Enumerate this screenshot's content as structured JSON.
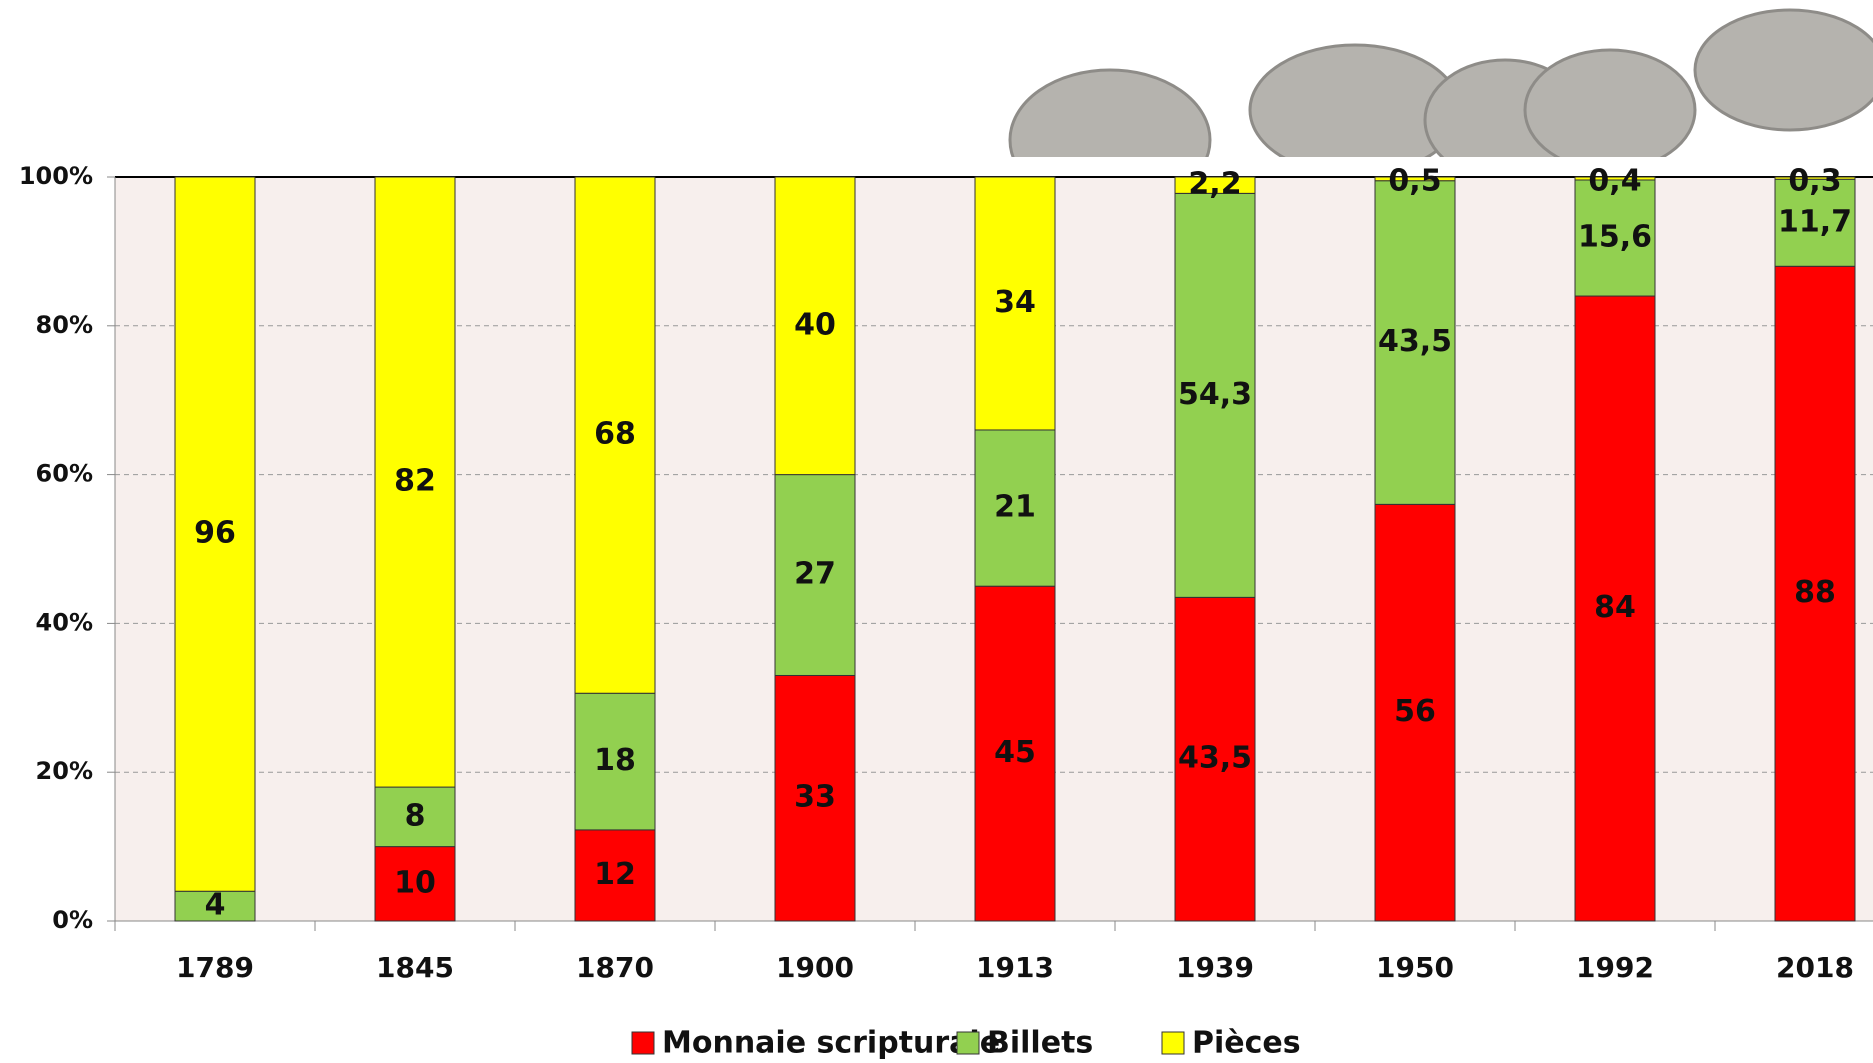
{
  "chart_data": {
    "type": "bar",
    "stack": "percent",
    "categories": [
      "1789",
      "1845",
      "1870",
      "1900",
      "1913",
      "1939",
      "1950",
      "1992",
      "2018"
    ],
    "series": [
      {
        "name": "Monnaie scripturale",
        "color": "#ff0000",
        "values": [
          null,
          10,
          12,
          33,
          45,
          43.5,
          56,
          84,
          88
        ],
        "value_labels": [
          null,
          "10",
          "12",
          "33",
          "45",
          "43,5",
          "56",
          "84",
          "88"
        ]
      },
      {
        "name": "Billets",
        "color": "#92d050",
        "values": [
          4,
          8,
          18,
          27,
          21,
          54.3,
          43.5,
          15.6,
          11.7
        ],
        "value_labels": [
          "4",
          "8",
          "18",
          "27",
          "21",
          "54,3",
          "43,5",
          "15,6",
          "11,7"
        ]
      },
      {
        "name": "Pièces",
        "color": "#ffff00",
        "values": [
          96,
          82,
          68,
          40,
          34,
          2.2,
          0.5,
          0.4,
          0.3
        ],
        "value_labels": [
          "96",
          "82",
          "68",
          "40",
          "34",
          "2,2",
          "0,5",
          "0,4",
          "0,3"
        ]
      }
    ],
    "ylim": [
      0,
      100
    ],
    "yticks": [
      {
        "value": 0,
        "label": "0%"
      },
      {
        "value": 20,
        "label": "20%"
      },
      {
        "value": 40,
        "label": "40%"
      },
      {
        "value": 60,
        "label": "60%"
      },
      {
        "value": 80,
        "label": "80%"
      },
      {
        "value": 100,
        "label": "100%"
      }
    ],
    "grid": true,
    "legend": "bottom"
  }
}
